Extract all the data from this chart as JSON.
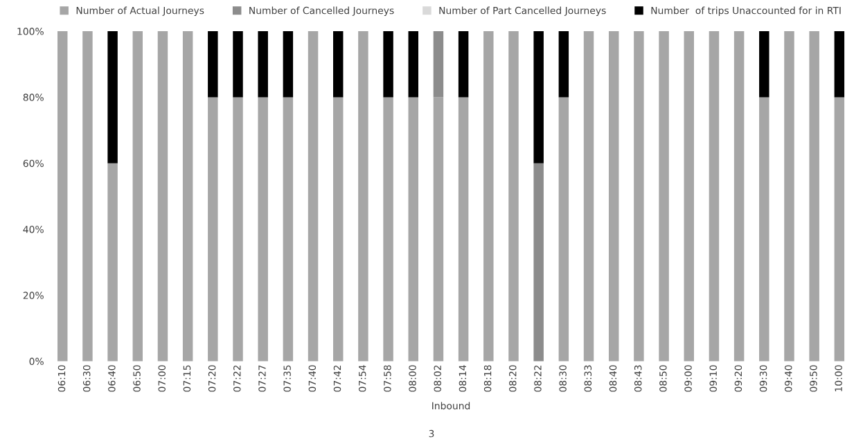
{
  "chart_data": {
    "type": "bar",
    "stacked": true,
    "xlabel": "Inbound",
    "annotations": [
      "3"
    ],
    "categories": [
      "06:10",
      "06:30",
      "06:40",
      "06:50",
      "07:00",
      "07:15",
      "07:20",
      "07:22",
      "07:27",
      "07:35",
      "07:40",
      "07:42",
      "07:54",
      "07:58",
      "08:00",
      "08:02",
      "08:14",
      "08:18",
      "08:20",
      "08:22",
      "08:30",
      "08:33",
      "08:40",
      "08:43",
      "08:50",
      "09:00",
      "09:10",
      "09:20",
      "09:30",
      "09:40",
      "09:50",
      "10:00"
    ],
    "series": [
      {
        "name": "Number of Actual Journeys",
        "color": "#a6a6a6",
        "values": [
          100,
          100,
          60,
          100,
          100,
          100,
          80,
          80,
          80,
          80,
          100,
          80,
          100,
          80,
          80,
          80,
          80,
          100,
          100,
          0,
          80,
          100,
          100,
          100,
          100,
          100,
          100,
          100,
          80,
          100,
          100,
          80
        ]
      },
      {
        "name": "Number of Cancelled Journeys",
        "color": "#8c8c8c",
        "values": [
          0,
          0,
          0,
          0,
          0,
          0,
          0,
          0,
          0,
          0,
          0,
          0,
          0,
          0,
          0,
          20,
          0,
          0,
          0,
          60,
          0,
          0,
          0,
          0,
          0,
          0,
          0,
          0,
          0,
          0,
          0,
          0
        ]
      },
      {
        "name": "Number of Part Cancelled Journeys",
        "color": "#d9d9d9",
        "values": [
          0,
          0,
          0,
          0,
          0,
          0,
          0,
          0,
          0,
          0,
          0,
          0,
          0,
          0,
          0,
          0,
          0,
          0,
          0,
          0,
          0,
          0,
          0,
          0,
          0,
          0,
          0,
          0,
          0,
          0,
          0,
          0
        ]
      },
      {
        "name": "Number  of trips Unaccounted for in RTI",
        "color": "#000000",
        "values": [
          0,
          0,
          40,
          0,
          0,
          0,
          20,
          20,
          20,
          20,
          0,
          20,
          0,
          20,
          20,
          0,
          20,
          0,
          0,
          40,
          20,
          0,
          0,
          0,
          0,
          0,
          0,
          0,
          20,
          0,
          0,
          20
        ]
      }
    ],
    "ylim": [
      0,
      100
    ],
    "yticks": [
      {
        "value": 0,
        "label": "0%"
      },
      {
        "value": 20,
        "label": "20%"
      },
      {
        "value": 40,
        "label": "40%"
      },
      {
        "value": 60,
        "label": "60%"
      },
      {
        "value": 80,
        "label": "80%"
      },
      {
        "value": 100,
        "label": "100%"
      }
    ],
    "grid": false,
    "legend": "top"
  }
}
